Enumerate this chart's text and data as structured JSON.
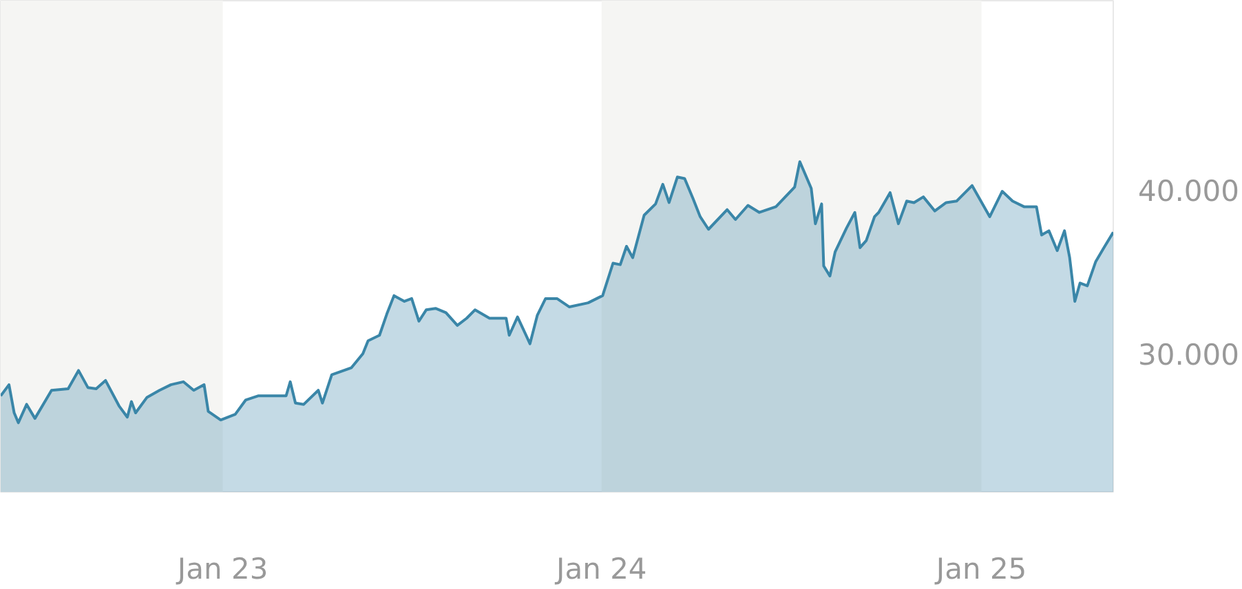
{
  "chart_data": {
    "type": "area",
    "x": [
      "2022-06-01",
      "2022-06-09",
      "2022-06-14",
      "2022-06-18",
      "2022-06-26",
      "2022-07-04",
      "2022-07-20",
      "2022-08-05",
      "2022-08-15",
      "2022-08-24",
      "2022-09-01",
      "2022-09-10",
      "2022-09-23",
      "2022-10-01",
      "2022-10-05",
      "2022-10-09",
      "2022-10-20",
      "2022-11-01",
      "2022-11-12",
      "2022-11-24",
      "2022-12-04",
      "2022-12-14",
      "2022-12-18",
      "2022-12-30",
      "2023-01-13",
      "2023-01-23",
      "2023-02-04",
      "2023-02-16",
      "2023-03-03",
      "2023-03-07",
      "2023-03-12",
      "2023-03-20",
      "2023-04-03",
      "2023-04-07",
      "2023-04-16",
      "2023-05-05",
      "2023-05-16",
      "2023-05-21",
      "2023-06-01",
      "2023-06-08",
      "2023-06-15",
      "2023-06-25",
      "2023-07-02",
      "2023-07-09",
      "2023-07-16",
      "2023-07-25",
      "2023-08-04",
      "2023-08-15",
      "2023-08-24",
      "2023-09-01",
      "2023-09-15",
      "2023-10-01",
      "2023-10-04",
      "2023-10-12",
      "2023-10-24",
      "2023-10-31",
      "2023-11-08",
      "2023-11-19",
      "2023-12-01",
      "2023-12-19",
      "2024-01-02",
      "2024-01-12",
      "2024-01-19",
      "2024-01-25",
      "2024-01-31",
      "2024-02-11",
      "2024-02-22",
      "2024-02-29",
      "2024-03-06",
      "2024-03-14",
      "2024-03-21",
      "2024-03-29",
      "2024-04-05",
      "2024-04-13",
      "2024-05-01",
      "2024-05-09",
      "2024-05-21",
      "2024-06-01",
      "2024-06-17",
      "2024-07-05",
      "2024-07-10",
      "2024-07-21",
      "2024-07-25",
      "2024-07-31",
      "2024-08-02",
      "2024-08-08",
      "2024-08-13",
      "2024-08-24",
      "2024-09-01",
      "2024-09-06",
      "2024-09-12",
      "2024-09-20",
      "2024-09-24",
      "2024-10-05",
      "2024-10-13",
      "2024-10-21",
      "2024-10-28",
      "2024-11-06",
      "2024-11-17",
      "2024-11-28",
      "2024-12-08",
      "2024-12-23",
      "2025-01-09",
      "2025-01-21",
      "2025-01-31",
      "2025-02-11",
      "2025-02-23",
      "2025-02-28",
      "2025-03-07",
      "2025-03-15",
      "2025-03-22",
      "2025-03-27",
      "2025-04-01",
      "2025-04-06",
      "2025-04-13",
      "2025-04-21",
      "2025-04-29",
      "2025-05-08"
    ],
    "series": [
      {
        "color": "#3a86a8",
        "values": [
          27420,
          28100,
          26380,
          25780,
          26900,
          26040,
          27760,
          27850,
          28970,
          27930,
          27850,
          28360,
          26810,
          26120,
          27070,
          26380,
          27330,
          27760,
          28100,
          28280,
          27760,
          28100,
          26470,
          25950,
          26290,
          27160,
          27420,
          27420,
          27420,
          28280,
          26980,
          26900,
          27760,
          26980,
          28710,
          29140,
          30000,
          30780,
          31120,
          32410,
          33540,
          33190,
          33360,
          31980,
          32670,
          32760,
          32500,
          31720,
          32160,
          32670,
          32160,
          32160,
          31120,
          32240,
          30600,
          32330,
          33360,
          33360,
          32850,
          33100,
          33540,
          35520,
          35430,
          36550,
          35860,
          38450,
          39140,
          40340,
          39220,
          40780,
          40690,
          39480,
          38360,
          37590,
          38790,
          38190,
          39050,
          38620,
          38970,
          40170,
          41720,
          40090,
          37930,
          39140,
          35350,
          34740,
          36210,
          37670,
          38620,
          36470,
          36900,
          38360,
          38620,
          39830,
          37930,
          39310,
          39220,
          39570,
          38710,
          39220,
          39310,
          40260,
          38360,
          39910,
          39310,
          38970,
          38970,
          37240,
          37500,
          36290,
          37500,
          35860,
          33190,
          34310,
          34140,
          35600,
          36470,
          37410
        ]
      }
    ],
    "xticks": [
      {
        "value": "2023-01-01",
        "label": "Jan 23"
      },
      {
        "value": "2024-01-01",
        "label": "Jan 24"
      },
      {
        "value": "2025-01-01",
        "label": "Jan 25"
      }
    ],
    "xlim": [
      "2022-06-01",
      "2025-05-08"
    ],
    "ylim": [
      21550,
      51550
    ],
    "yticks": [
      {
        "value": 30000,
        "label": "30.000"
      },
      {
        "value": 40000,
        "label": "40.000"
      }
    ],
    "bands": [
      {
        "axis": "x",
        "from": "2022-06-01",
        "to": "2023-01-01",
        "color": "#f5f5f3"
      },
      {
        "axis": "x",
        "from": "2024-01-01",
        "to": "2025-01-01",
        "color": "#f5f5f3"
      }
    ],
    "grid": false
  }
}
